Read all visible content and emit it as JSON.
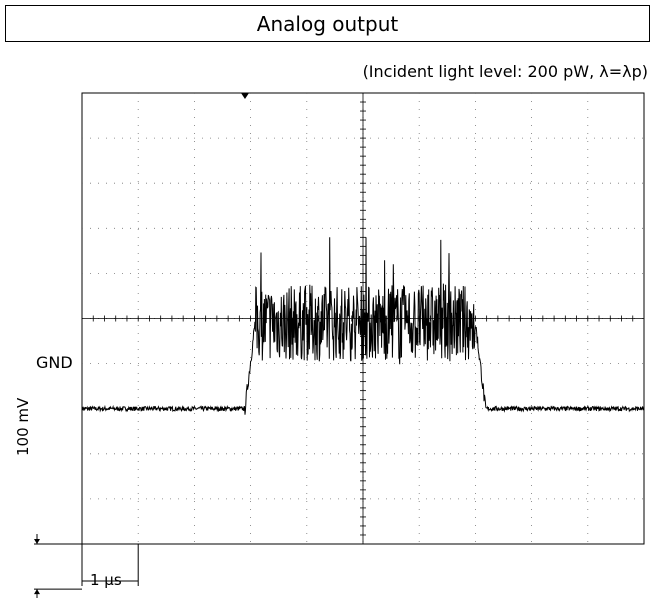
{
  "title": "Analog output",
  "subtitle": "(Incident light level: 200 pW, λ=λp)",
  "labels": {
    "gnd": "GND",
    "vscale": "100 mV",
    "tscale": "1 μs"
  },
  "chart_data": {
    "type": "line",
    "title": "Analog output",
    "subtitle": "(Incident light level: 200 pW, λ=λp)",
    "xlabel": "",
    "ylabel": "",
    "grid": true,
    "x_divisions": 10,
    "y_divisions": 10,
    "scale": {
      "time_per_div": "1 μs",
      "volt_per_div": "100 mV"
    },
    "xlim": [
      0,
      10
    ],
    "ylim": [
      -3,
      7
    ],
    "gnd_level": 0,
    "series": [
      {
        "pulse_start_div": 2.9,
        "pulse_end_div": 7.0,
        "baseline_mV": 0,
        "pulse_mean_mV": 190,
        "pulse_min_mV": 95,
        "pulse_max_mV": 380
      }
    ]
  }
}
